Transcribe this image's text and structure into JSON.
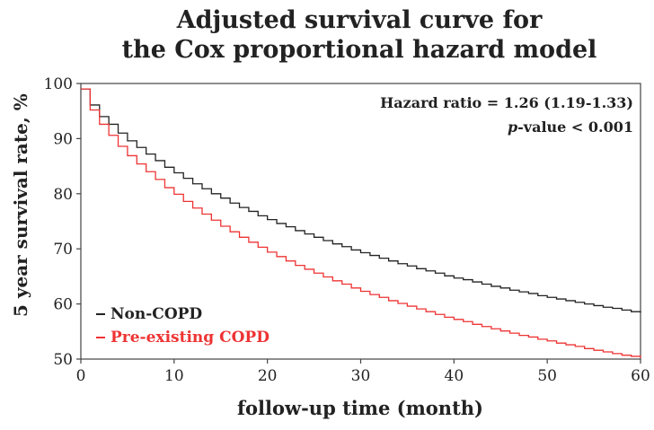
{
  "chart_data": {
    "type": "line",
    "title_line1": "Adjusted survival curve for",
    "title_line2": "the Cox proportional hazard model",
    "xlabel": "follow-up time (month)",
    "ylabel": "5 year survival rate, %",
    "xlim": [
      0,
      60
    ],
    "ylim": [
      50,
      100
    ],
    "x_ticks": [
      0,
      10,
      20,
      30,
      40,
      50,
      60
    ],
    "y_ticks": [
      50,
      60,
      70,
      80,
      90,
      100
    ],
    "grid": false,
    "legend_position": "bottom-left",
    "annotation_line1": "Hazard ratio = 1.26 (1.19-1.33)",
    "annotation_line2_italic": "p",
    "annotation_line2_rest": "-value < 0.001",
    "step": true,
    "series": [
      {
        "name": "Non-COPD",
        "color": "#222222",
        "x": [
          0,
          1,
          2,
          3,
          4,
          5,
          6,
          7,
          8,
          9,
          10,
          11,
          12,
          13,
          14,
          15,
          16,
          17,
          18,
          19,
          20,
          21,
          22,
          23,
          24,
          25,
          26,
          27,
          28,
          29,
          30,
          31,
          32,
          33,
          34,
          35,
          36,
          37,
          38,
          39,
          40,
          41,
          42,
          43,
          44,
          45,
          46,
          47,
          48,
          49,
          50,
          51,
          52,
          53,
          54,
          55,
          56,
          57,
          58,
          59,
          60
        ],
        "y": [
          99.0,
          96.1,
          94.0,
          92.6,
          91.0,
          89.6,
          88.4,
          87.2,
          86.0,
          84.8,
          83.8,
          82.8,
          81.8,
          80.9,
          80.0,
          79.2,
          78.3,
          77.5,
          76.8,
          76.0,
          75.3,
          74.6,
          74.0,
          73.3,
          72.7,
          72.1,
          71.5,
          70.9,
          70.4,
          69.8,
          69.3,
          68.8,
          68.3,
          67.8,
          67.3,
          66.9,
          66.4,
          66.0,
          65.6,
          65.1,
          64.7,
          64.4,
          64.0,
          63.6,
          63.2,
          62.9,
          62.5,
          62.2,
          61.9,
          61.5,
          61.2,
          60.9,
          60.6,
          60.3,
          60.0,
          59.7,
          59.4,
          59.2,
          58.9,
          58.6,
          58.4
        ]
      },
      {
        "name": "Pre-existing COPD",
        "color": "#ee3333",
        "x": [
          0,
          1,
          2,
          3,
          4,
          5,
          6,
          7,
          8,
          9,
          10,
          11,
          12,
          13,
          14,
          15,
          16,
          17,
          18,
          19,
          20,
          21,
          22,
          23,
          24,
          25,
          26,
          27,
          28,
          29,
          30,
          31,
          32,
          33,
          34,
          35,
          36,
          37,
          38,
          39,
          40,
          41,
          42,
          43,
          44,
          45,
          46,
          47,
          48,
          49,
          50,
          51,
          52,
          53,
          54,
          55,
          56,
          57,
          58,
          59,
          60
        ],
        "y": [
          99.0,
          95.2,
          92.6,
          90.6,
          88.6,
          86.9,
          85.4,
          84.0,
          82.6,
          81.1,
          79.9,
          78.6,
          77.4,
          76.3,
          75.2,
          74.1,
          73.1,
          72.1,
          71.2,
          70.3,
          69.4,
          68.6,
          67.8,
          67.0,
          66.3,
          65.6,
          64.9,
          64.2,
          63.6,
          62.9,
          62.3,
          61.7,
          61.2,
          60.6,
          60.1,
          59.6,
          59.1,
          58.6,
          58.1,
          57.6,
          57.2,
          56.8,
          56.3,
          55.9,
          55.5,
          55.1,
          54.7,
          54.3,
          54.0,
          53.6,
          53.3,
          52.9,
          52.6,
          52.3,
          51.9,
          51.6,
          51.3,
          51.0,
          50.7,
          50.5,
          50.2
        ]
      }
    ]
  }
}
